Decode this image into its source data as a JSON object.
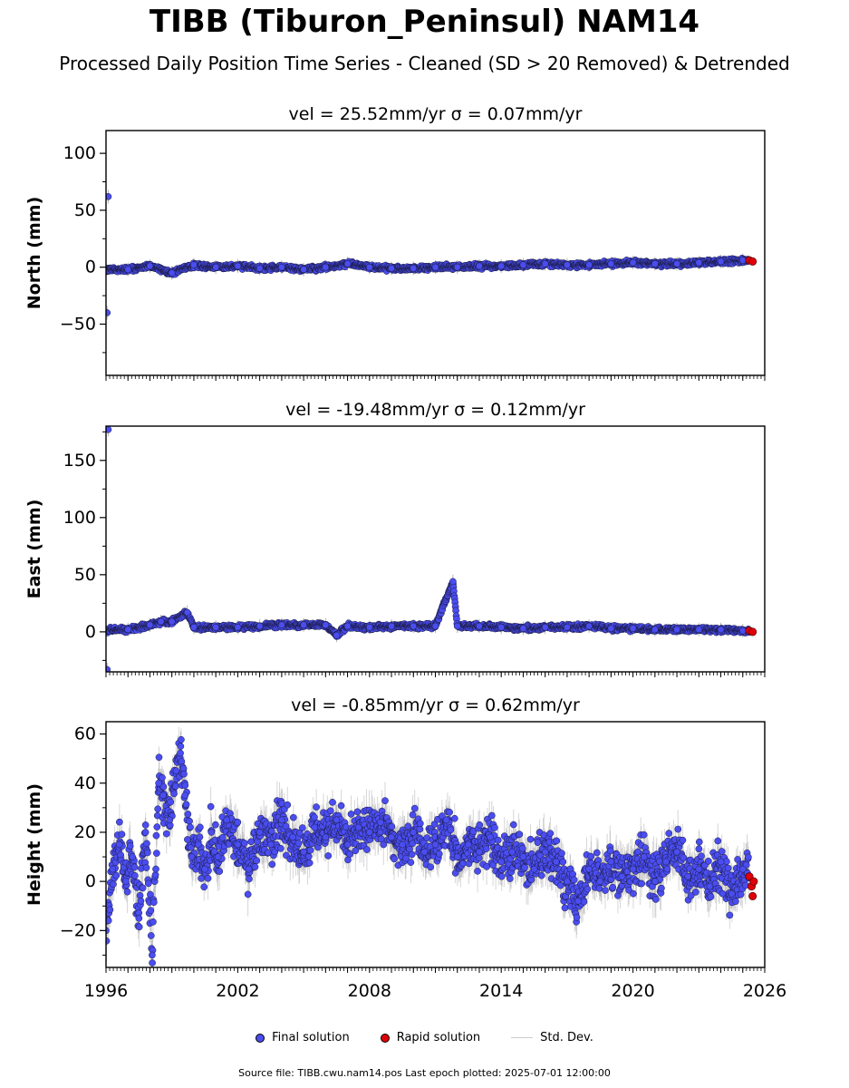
{
  "title": "TIBB (Tiburon_Peninsul) NAM14",
  "subtitle": "Processed Daily Position Time Series - Cleaned (SD > 20 Removed) & Detrended",
  "chart_data": [
    {
      "type": "scatter",
      "title": "vel = 25.52mm/yr   σ = 0.07mm/yr",
      "ylabel": "North (mm)",
      "xlim": [
        1996,
        2026
      ],
      "ylim": [
        -95,
        120
      ],
      "yticks": [
        -50,
        0,
        50,
        100
      ],
      "ytick_labels": [
        "−50",
        "0",
        "50",
        "100"
      ],
      "series": [
        {
          "name": "Final solution",
          "points": [
            [
              1996.05,
              -40
            ],
            [
              1996.1,
              62
            ],
            [
              1997.0,
              -2
            ],
            [
              1998.0,
              1
            ],
            [
              1999.0,
              -5
            ],
            [
              2000.0,
              2
            ],
            [
              2001.0,
              0
            ],
            [
              2002.0,
              1
            ],
            [
              2003.0,
              -1
            ],
            [
              2004.0,
              0
            ],
            [
              2005.0,
              -2
            ],
            [
              2006.0,
              0
            ],
            [
              2007.0,
              3
            ],
            [
              2008.0,
              0
            ],
            [
              2009.0,
              -1
            ],
            [
              2010.0,
              -1
            ],
            [
              2011.0,
              0
            ],
            [
              2012.0,
              0
            ],
            [
              2013.0,
              1
            ],
            [
              2014.0,
              1
            ],
            [
              2015.0,
              2
            ],
            [
              2016.0,
              3
            ],
            [
              2017.0,
              2
            ],
            [
              2018.0,
              2
            ],
            [
              2019.0,
              3
            ],
            [
              2020.0,
              4
            ],
            [
              2021.0,
              3
            ],
            [
              2022.0,
              3
            ],
            [
              2023.0,
              4
            ],
            [
              2024.0,
              5
            ],
            [
              2025.0,
              6
            ]
          ]
        },
        {
          "name": "Rapid solution",
          "points": [
            [
              2025.3,
              6
            ],
            [
              2025.45,
              5
            ]
          ]
        }
      ]
    },
    {
      "type": "scatter",
      "title": "vel = -19.48mm/yr   σ = 0.12mm/yr",
      "ylabel": "East (mm)",
      "xlim": [
        1996,
        2026
      ],
      "ylim": [
        -35,
        180
      ],
      "yticks": [
        0,
        50,
        100,
        150
      ],
      "ytick_labels": [
        "0",
        "50",
        "100",
        "150"
      ],
      "series": [
        {
          "name": "Final solution",
          "points": [
            [
              1996.05,
              -33
            ],
            [
              1996.1,
              177
            ],
            [
              1997.0,
              2
            ],
            [
              1998.0,
              6
            ],
            [
              1998.5,
              9
            ],
            [
              1999.0,
              9
            ],
            [
              1999.7,
              17
            ],
            [
              2000.0,
              4
            ],
            [
              2001.0,
              4
            ],
            [
              2002.0,
              4
            ],
            [
              2003.0,
              5
            ],
            [
              2004.0,
              6
            ],
            [
              2005.0,
              6
            ],
            [
              2006.0,
              6
            ],
            [
              2006.5,
              -3
            ],
            [
              2007.0,
              5
            ],
            [
              2008.0,
              4
            ],
            [
              2009.0,
              5
            ],
            [
              2010.0,
              5
            ],
            [
              2011.0,
              5
            ],
            [
              2011.8,
              44
            ],
            [
              2012.0,
              5
            ],
            [
              2013.0,
              5
            ],
            [
              2014.0,
              4
            ],
            [
              2015.0,
              3
            ],
            [
              2016.0,
              4
            ],
            [
              2017.0,
              4
            ],
            [
              2018.0,
              5
            ],
            [
              2019.0,
              3
            ],
            [
              2020.0,
              3
            ],
            [
              2021.0,
              2
            ],
            [
              2022.0,
              2
            ],
            [
              2023.0,
              2
            ],
            [
              2024.0,
              2
            ],
            [
              2025.0,
              1
            ]
          ]
        },
        {
          "name": "Rapid solution",
          "points": [
            [
              2025.3,
              1
            ],
            [
              2025.45,
              0
            ]
          ]
        }
      ]
    },
    {
      "type": "scatter",
      "title": "vel = -0.85mm/yr   σ = 0.62mm/yr",
      "ylabel": "Height (mm)",
      "xlim": [
        1996,
        2026
      ],
      "ylim": [
        -35,
        65
      ],
      "yticks": [
        -20,
        0,
        20,
        40,
        60
      ],
      "ytick_labels": [
        "−20",
        "0",
        "20",
        "40",
        "60"
      ],
      "series": [
        {
          "name": "Final solution",
          "points": [
            [
              1996.0,
              -20
            ],
            [
              1996.3,
              5
            ],
            [
              1996.6,
              15
            ],
            [
              1996.9,
              0
            ],
            [
              1997.2,
              10
            ],
            [
              1997.5,
              -15
            ],
            [
              1997.8,
              20
            ],
            [
              1998.1,
              -30
            ],
            [
              1998.4,
              40
            ],
            [
              1998.6,
              35
            ],
            [
              1998.9,
              25
            ],
            [
              1999.2,
              45
            ],
            [
              1999.4,
              55
            ],
            [
              1999.6,
              35
            ],
            [
              1999.9,
              10
            ],
            [
              2000.2,
              15
            ],
            [
              2000.5,
              5
            ],
            [
              2000.8,
              20
            ],
            [
              2001.1,
              10
            ],
            [
              2001.5,
              25
            ],
            [
              2002.0,
              15
            ],
            [
              2002.5,
              5
            ],
            [
              2003.0,
              20
            ],
            [
              2003.5,
              15
            ],
            [
              2004.0,
              25
            ],
            [
              2004.5,
              18
            ],
            [
              2005.0,
              12
            ],
            [
              2005.5,
              22
            ],
            [
              2006.0,
              18
            ],
            [
              2006.5,
              25
            ],
            [
              2007.0,
              15
            ],
            [
              2007.5,
              22
            ],
            [
              2008.0,
              20
            ],
            [
              2008.5,
              24
            ],
            [
              2009.0,
              18
            ],
            [
              2009.5,
              15
            ],
            [
              2010.0,
              20
            ],
            [
              2010.5,
              12
            ],
            [
              2011.0,
              15
            ],
            [
              2011.5,
              25
            ],
            [
              2012.0,
              10
            ],
            [
              2012.5,
              15
            ],
            [
              2013.0,
              12
            ],
            [
              2013.5,
              18
            ],
            [
              2014.0,
              8
            ],
            [
              2014.5,
              12
            ],
            [
              2015.0,
              10
            ],
            [
              2015.5,
              5
            ],
            [
              2016.0,
              12
            ],
            [
              2016.5,
              8
            ],
            [
              2017.0,
              0
            ],
            [
              2017.5,
              -8
            ],
            [
              2018.0,
              5
            ],
            [
              2018.5,
              0
            ],
            [
              2019.0,
              8
            ],
            [
              2019.5,
              2
            ],
            [
              2020.0,
              5
            ],
            [
              2020.5,
              10
            ],
            [
              2021.0,
              0
            ],
            [
              2021.5,
              8
            ],
            [
              2022.0,
              12
            ],
            [
              2022.5,
              2
            ],
            [
              2023.0,
              5
            ],
            [
              2023.5,
              -2
            ],
            [
              2024.0,
              8
            ],
            [
              2024.5,
              -5
            ],
            [
              2025.0,
              5
            ]
          ]
        },
        {
          "name": "Rapid solution",
          "points": [
            [
              2025.3,
              2
            ],
            [
              2025.4,
              -2
            ],
            [
              2025.45,
              -6
            ],
            [
              2025.5,
              0
            ]
          ]
        }
      ],
      "xticks": [
        1996,
        2002,
        2008,
        2014,
        2020,
        2026
      ],
      "xtick_labels": [
        "1996",
        "2002",
        "2008",
        "2014",
        "2020",
        "2026"
      ]
    }
  ],
  "legend": {
    "placement": "bottom-center",
    "items": [
      {
        "label": "Final solution",
        "color": "#4a4df0"
      },
      {
        "label": "Rapid solution",
        "color": "#e0000a"
      },
      {
        "label": "Std. Dev.",
        "color": "#cccccc"
      }
    ]
  },
  "footer": "Source file: TIBB.cwu.nam14.pos  Last epoch plotted: 2025-07-01 12:00:00"
}
